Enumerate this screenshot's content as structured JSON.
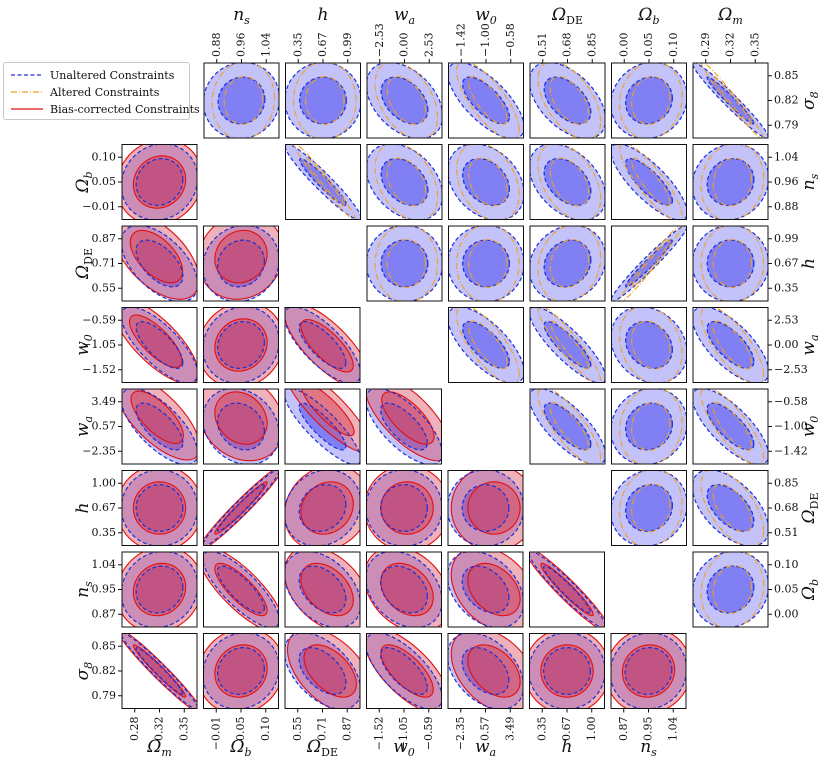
{
  "chart_data": {
    "type": "corner-contour",
    "parameters": [
      {
        "key": "Om",
        "label": "Ω_m",
        "ticks": [
          "0.28",
          "0.32",
          "0.35"
        ],
        "top_ticks": [
          "0.29",
          "0.32",
          "0.35"
        ],
        "range": [
          0.265,
          0.365
        ]
      },
      {
        "key": "Ob",
        "label": "Ω_b",
        "ticks": [
          "−0.01",
          "0.05",
          "0.10"
        ],
        "top_ticks": [
          "0.00",
          "0.05",
          "0.10"
        ],
        "range": [
          -0.03,
          0.12
        ]
      },
      {
        "key": "Ode",
        "label": "Ω_DE",
        "ticks": [
          "0.55",
          "0.71",
          "0.87"
        ],
        "top_ticks": [
          "0.51",
          "0.68",
          "0.85"
        ],
        "range": [
          0.48,
          0.9
        ]
      },
      {
        "key": "w0",
        "label": "w_0",
        "ticks": [
          "−1.52",
          "−1.05",
          "−0.59"
        ],
        "top_ticks": [
          "−1.42",
          "−1.00",
          "−0.58"
        ],
        "range": [
          -1.65,
          -0.45
        ]
      },
      {
        "key": "wa",
        "label": "w_a",
        "ticks": [
          "−2.35",
          "0.57",
          "3.49"
        ],
        "top_ticks": [
          "−2.53",
          "0.00",
          "2.53"
        ],
        "range": [
          -3.2,
          4.2
        ]
      },
      {
        "key": "h",
        "label": "h",
        "ticks": [
          "0.35",
          "0.67",
          "1.00"
        ],
        "top_ticks": [
          "0.35",
          "0.67",
          "0.99"
        ],
        "range": [
          0.28,
          1.07
        ]
      },
      {
        "key": "ns",
        "label": "n_s",
        "ticks": [
          "0.87",
          "0.95",
          "1.04"
        ],
        "top_ticks": [
          "0.88",
          "0.96",
          "1.04"
        ],
        "range": [
          0.84,
          1.07
        ]
      },
      {
        "key": "s8",
        "label": "σ_8",
        "ticks": [
          "0.79",
          "0.82",
          "0.85"
        ],
        "top_ticks": [
          "0.79",
          "0.82",
          "0.85"
        ],
        "range": [
          0.775,
          0.865
        ]
      }
    ],
    "lower_triangle_series": [
      "Unaltered Constraints",
      "Bias-corrected Constraints"
    ],
    "upper_triangle_series": [
      "Unaltered Constraints",
      "Altered Constraints"
    ],
    "correlations": {
      "Om-Ob": 0.1,
      "Om-Ode": -0.55,
      "Om-w0": -0.75,
      "Om-wa": -0.7,
      "Om-h": 0.0,
      "Om-ns": 0.1,
      "Om-s8": -0.97,
      "Ob-Ode": 0.1,
      "Ob-w0": 0.1,
      "Ob-wa": -0.2,
      "Ob-h": 0.97,
      "Ob-ns": -0.8,
      "Ob-s8": 0.1,
      "Ode-w0": -0.75,
      "Ode-wa": -0.85,
      "Ode-h": 0.15,
      "Ode-ns": -0.4,
      "Ode-s8": -0.5,
      "w0-wa": -0.7,
      "w0-h": 0.0,
      "w0-ns": -0.3,
      "w0-s8": -0.7,
      "wa-h": 0.0,
      "wa-ns": -0.35,
      "wa-s8": -0.4,
      "h-ns": -0.95,
      "h-s8": 0.0,
      "ns-s8": 0.05
    },
    "lower_shift": {
      "Om-Ob": [
        0.0,
        0.0
      ],
      "Om-Ode": [
        -0.2,
        0.45
      ],
      "Om-w0": [
        -0.25,
        0.25
      ],
      "Om-wa": [
        -0.15,
        0.6
      ],
      "Om-h": [
        0.0,
        0.0
      ],
      "Om-ns": [
        0.0,
        0.0
      ],
      "Om-s8": [
        0.0,
        0.0
      ],
      "Ob-Ode": [
        0.0,
        0.45
      ],
      "Ob-w0": [
        0.0,
        0.0
      ],
      "Ob-wa": [
        0.0,
        0.55
      ],
      "Ob-h": [
        0.0,
        0.0
      ],
      "Ob-ns": [
        0.0,
        0.0
      ],
      "Ob-s8": [
        0.0,
        0.0
      ],
      "Ode-w0": [
        0.3,
        -0.05
      ],
      "Ode-wa": [
        0.35,
        1.1
      ],
      "Ode-h": [
        0.3,
        0.0
      ],
      "Ode-ns": [
        0.3,
        0.0
      ],
      "Ode-s8": [
        0.5,
        0.0
      ],
      "w0-wa": [
        0.25,
        0.55
      ],
      "w0-h": [
        0.2,
        0.0
      ],
      "w0-ns": [
        0.2,
        0.0
      ],
      "w0-s8": [
        0.2,
        0.0
      ],
      "wa-h": [
        0.55,
        0.0
      ],
      "wa-ns": [
        0.55,
        0.0
      ],
      "wa-s8": [
        0.55,
        0.0
      ],
      "h-ns": [
        0.0,
        0.0
      ],
      "h-s8": [
        0.0,
        0.0
      ],
      "ns-s8": [
        0.0,
        0.0
      ]
    }
  },
  "legend": {
    "unaltered": "Unaltered Constraints",
    "altered": "Altered Constraints",
    "bias_corrected": "Bias-corrected Constraints"
  },
  "colors": {
    "unaltered_fill": "#6a6af2",
    "unaltered_line": "#1d2fd6",
    "altered_line": "#f0a020",
    "bias_fill": "#d9455a",
    "bias_line": "#e01010"
  }
}
